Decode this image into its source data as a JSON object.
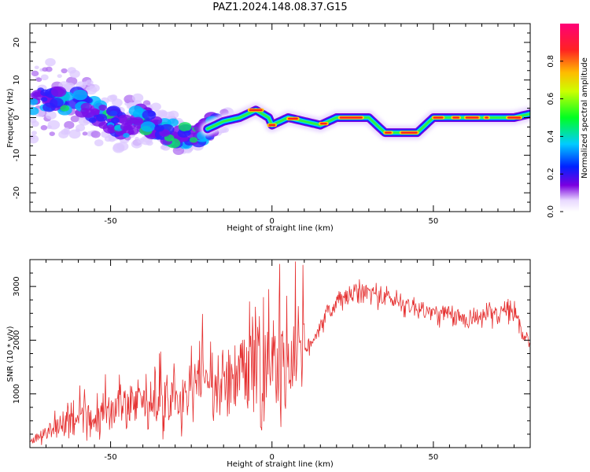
{
  "title": "PAZ1.2024.148.08.37.G15",
  "chart_data": [
    {
      "type": "heatmap",
      "xlabel": "Height of straight line (km)",
      "ylabel": "Frequency (Hz)",
      "xlim": [
        -75,
        80
      ],
      "ylim": [
        -25,
        25
      ],
      "xticks": [
        -50,
        0,
        50
      ],
      "yticks": [
        -20,
        -10,
        0,
        10,
        20
      ],
      "colorbar": {
        "label": "Normalized spectral amplitude",
        "range": [
          0,
          1
        ],
        "ticks": [
          0.0,
          0.2,
          0.4,
          0.6,
          0.8
        ]
      },
      "ridge": {
        "x": [
          -75,
          -70,
          -65,
          -60,
          -55,
          -50,
          -45,
          -40,
          -35,
          -30,
          -25,
          -20,
          -15,
          -10,
          -5,
          -1,
          0,
          5,
          10,
          15,
          20,
          25,
          30,
          35,
          40,
          45,
          50,
          55,
          60,
          65,
          70,
          75,
          80
        ],
        "y": [
          4,
          5,
          5,
          4,
          2,
          -1,
          -2,
          0,
          -3,
          -4,
          -6,
          -3,
          -1,
          0,
          2,
          0,
          -2,
          0,
          -1,
          -2,
          0,
          0,
          0,
          -4,
          -4,
          -4,
          0,
          0,
          0,
          0,
          0,
          0,
          1
        ]
      }
    },
    {
      "type": "line",
      "xlabel": "Height of straight line (km)",
      "ylabel": "SNR (10 * v/v)",
      "xlim": [
        -75,
        80
      ],
      "ylim": [
        0,
        3500
      ],
      "xticks": [
        -50,
        0,
        50
      ],
      "yticks": [
        1000,
        2000,
        3000
      ],
      "color": "#e53030",
      "series": [
        {
          "x": [
            -75,
            -70,
            -65,
            -60,
            -55,
            -50,
            -45,
            -40,
            -35,
            -30,
            -25,
            -20,
            -15,
            -10,
            -5,
            0,
            5,
            10,
            15,
            20,
            25,
            30,
            35,
            40,
            45,
            50,
            55,
            60,
            65,
            70,
            75,
            78,
            80
          ],
          "values": [
            100,
            250,
            400,
            500,
            550,
            650,
            700,
            800,
            850,
            950,
            1050,
            1100,
            1100,
            1200,
            1500,
            1300,
            1650,
            1700,
            2300,
            2700,
            2850,
            2900,
            2800,
            2700,
            2600,
            2500,
            2450,
            2400,
            2450,
            2500,
            2550,
            2100,
            2000
          ]
        }
      ]
    }
  ]
}
